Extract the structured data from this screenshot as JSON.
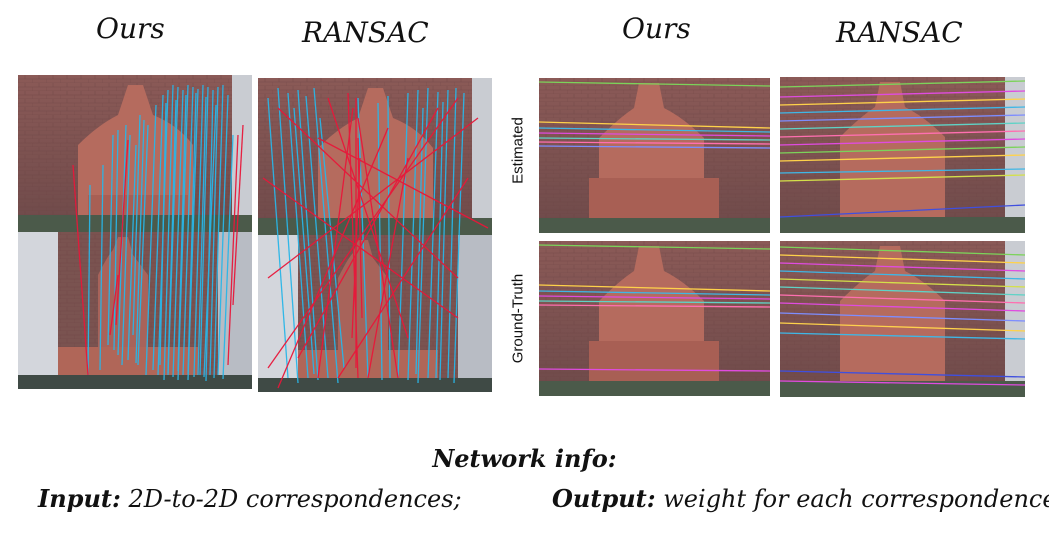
{
  "column_titles": {
    "left_ours": "Ours",
    "left_ransac": "RANSAC",
    "right_ours": "Ours",
    "right_ransac": "RANSAC"
  },
  "row_labels": {
    "estimated": "Estimated",
    "ground_truth": "Ground-Truth"
  },
  "network_info": {
    "title": "Network info:",
    "input_label": "Input:",
    "input_text": "2D-to-2D correspondences;",
    "output_label": "Output:",
    "output_text": "weight for each correspondence."
  },
  "colors": {
    "inlier_match": "#29b6e8",
    "outlier_match": "#e8173a",
    "wall_brick": "#8a5a56",
    "fountain": "#b86a5c"
  }
}
